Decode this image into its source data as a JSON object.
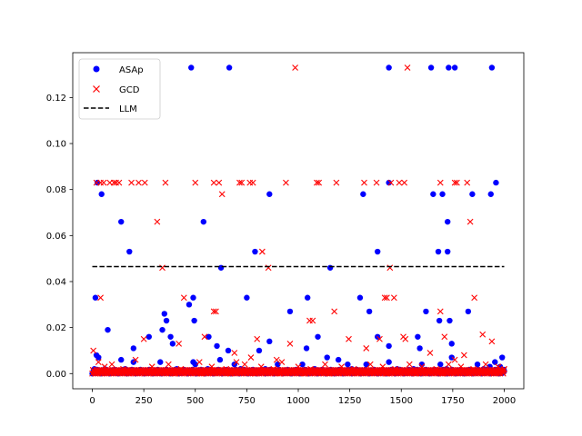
{
  "chart_data": {
    "type": "scatter",
    "title": "",
    "xlabel": "",
    "ylabel": "",
    "xlim": [
      -95,
      2095
    ],
    "ylim": [
      -0.0066,
      0.1395
    ],
    "grid": false,
    "legend": "upper-left",
    "x_ticks": [
      0,
      250,
      500,
      750,
      1000,
      1250,
      1500,
      1750,
      2000
    ],
    "x_tick_labels": [
      "0",
      "250",
      "500",
      "750",
      "1000",
      "1250",
      "1500",
      "1750",
      "2000"
    ],
    "y_ticks": [
      0.0,
      0.02,
      0.04,
      0.06,
      0.08,
      0.1,
      0.12
    ],
    "y_tick_labels": [
      "0.00",
      "0.02",
      "0.04",
      "0.06",
      "0.08",
      "0.10",
      "0.12"
    ],
    "colors": {
      "asap": "#0000ff",
      "gcd": "#ff0000",
      "llm": "#000000"
    },
    "series": [
      {
        "name": "ASAp",
        "marker": "circle",
        "points": [
          [
            480,
            0.133
          ],
          [
            665,
            0.133
          ],
          [
            1440,
            0.133
          ],
          [
            1645,
            0.133
          ],
          [
            1730,
            0.133
          ],
          [
            1760,
            0.133
          ],
          [
            1940,
            0.133
          ],
          [
            25,
            0.083
          ],
          [
            1440,
            0.083
          ],
          [
            1960,
            0.083
          ],
          [
            45,
            0.078
          ],
          [
            860,
            0.078
          ],
          [
            1315,
            0.078
          ],
          [
            1655,
            0.078
          ],
          [
            1700,
            0.078
          ],
          [
            1845,
            0.078
          ],
          [
            1935,
            0.078
          ],
          [
            140,
            0.066
          ],
          [
            540,
            0.066
          ],
          [
            1725,
            0.066
          ],
          [
            180,
            0.053
          ],
          [
            790,
            0.053
          ],
          [
            1385,
            0.053
          ],
          [
            1680,
            0.053
          ],
          [
            1725,
            0.053
          ],
          [
            1155,
            0.046
          ],
          [
            625,
            0.046
          ],
          [
            15,
            0.033
          ],
          [
            490,
            0.033
          ],
          [
            750,
            0.033
          ],
          [
            1045,
            0.033
          ],
          [
            1300,
            0.033
          ],
          [
            470,
            0.03
          ],
          [
            350,
            0.026
          ],
          [
            960,
            0.027
          ],
          [
            1345,
            0.027
          ],
          [
            1620,
            0.027
          ],
          [
            1825,
            0.027
          ],
          [
            75,
            0.019
          ],
          [
            340,
            0.019
          ],
          [
            360,
            0.023
          ],
          [
            495,
            0.023
          ],
          [
            1685,
            0.023
          ],
          [
            1735,
            0.023
          ],
          [
            275,
            0.016
          ],
          [
            380,
            0.016
          ],
          [
            565,
            0.016
          ],
          [
            1095,
            0.016
          ],
          [
            1385,
            0.016
          ],
          [
            1580,
            0.016
          ],
          [
            390,
            0.013
          ],
          [
            605,
            0.012
          ],
          [
            860,
            0.014
          ],
          [
            1440,
            0.012
          ],
          [
            1590,
            0.011
          ],
          [
            1745,
            0.013
          ],
          [
            200,
            0.011
          ],
          [
            810,
            0.01
          ],
          [
            660,
            0.01
          ],
          [
            1040,
            0.011
          ],
          [
            1745,
            0.007
          ],
          [
            20,
            0.008
          ],
          [
            30,
            0.007
          ],
          [
            140,
            0.006
          ],
          [
            1140,
            0.007
          ],
          [
            1195,
            0.006
          ],
          [
            1240,
            0.004
          ],
          [
            200,
            0.005
          ],
          [
            330,
            0.005
          ],
          [
            490,
            0.005
          ],
          [
            500,
            0.004
          ],
          [
            620,
            0.006
          ],
          [
            690,
            0.004
          ],
          [
            900,
            0.004
          ],
          [
            1020,
            0.004
          ],
          [
            1330,
            0.004
          ],
          [
            1440,
            0.005
          ],
          [
            1600,
            0.004
          ],
          [
            1690,
            0.004
          ],
          [
            1870,
            0.004
          ],
          [
            1990,
            0.007
          ],
          [
            1955,
            0.005
          ],
          [
            1930,
            0.003
          ],
          [
            10,
            0.002
          ],
          [
            60,
            0.002
          ],
          [
            100,
            0.001
          ],
          [
            160,
            0.002
          ],
          [
            220,
            0.001
          ],
          [
            280,
            0.001
          ],
          [
            410,
            0.002
          ],
          [
            460,
            0.001
          ],
          [
            560,
            0.002
          ],
          [
            600,
            0.001
          ],
          [
            720,
            0.002
          ],
          [
            780,
            0.001
          ],
          [
            840,
            0.002
          ],
          [
            960,
            0.001
          ],
          [
            1080,
            0.002
          ],
          [
            1120,
            0.001
          ],
          [
            1260,
            0.002
          ],
          [
            1300,
            0.001
          ],
          [
            1400,
            0.001
          ],
          [
            1480,
            0.002
          ],
          [
            1520,
            0.001
          ],
          [
            1560,
            0.002
          ],
          [
            1660,
            0.001
          ],
          [
            1720,
            0.002
          ],
          [
            1800,
            0.001
          ],
          [
            1900,
            0.002
          ],
          [
            2000,
            0.001
          ],
          [
            1980,
            0.003
          ]
        ]
      },
      {
        "name": "GCD",
        "marker": "x",
        "points": [
          [
            985,
            0.133
          ],
          [
            1530,
            0.133
          ],
          [
            20,
            0.083
          ],
          [
            40,
            0.083
          ],
          [
            55,
            0.083
          ],
          [
            85,
            0.083
          ],
          [
            105,
            0.083
          ],
          [
            115,
            0.083
          ],
          [
            130,
            0.083
          ],
          [
            190,
            0.083
          ],
          [
            225,
            0.083
          ],
          [
            255,
            0.083
          ],
          [
            355,
            0.083
          ],
          [
            500,
            0.083
          ],
          [
            590,
            0.083
          ],
          [
            615,
            0.083
          ],
          [
            715,
            0.083
          ],
          [
            725,
            0.083
          ],
          [
            765,
            0.083
          ],
          [
            780,
            0.083
          ],
          [
            940,
            0.083
          ],
          [
            1090,
            0.083
          ],
          [
            1100,
            0.083
          ],
          [
            1185,
            0.083
          ],
          [
            1320,
            0.083
          ],
          [
            1380,
            0.083
          ],
          [
            1450,
            0.083
          ],
          [
            1490,
            0.083
          ],
          [
            1515,
            0.083
          ],
          [
            1690,
            0.083
          ],
          [
            1760,
            0.083
          ],
          [
            1770,
            0.083
          ],
          [
            1820,
            0.083
          ],
          [
            630,
            0.078
          ],
          [
            315,
            0.066
          ],
          [
            1835,
            0.066
          ],
          [
            825,
            0.053
          ],
          [
            340,
            0.046
          ],
          [
            855,
            0.046
          ],
          [
            1445,
            0.046
          ],
          [
            40,
            0.033
          ],
          [
            445,
            0.033
          ],
          [
            1420,
            0.033
          ],
          [
            1430,
            0.033
          ],
          [
            1465,
            0.033
          ],
          [
            1855,
            0.033
          ],
          [
            590,
            0.027
          ],
          [
            600,
            0.027
          ],
          [
            1175,
            0.027
          ],
          [
            1690,
            0.027
          ],
          [
            1055,
            0.023
          ],
          [
            1070,
            0.023
          ],
          [
            1510,
            0.016
          ],
          [
            1520,
            0.015
          ],
          [
            1710,
            0.016
          ],
          [
            250,
            0.015
          ],
          [
            420,
            0.013
          ],
          [
            545,
            0.016
          ],
          [
            1245,
            0.015
          ],
          [
            1395,
            0.015
          ],
          [
            1895,
            0.017
          ],
          [
            770,
            0.007
          ],
          [
            800,
            0.015
          ],
          [
            1940,
            0.014
          ],
          [
            960,
            0.013
          ],
          [
            895,
            0.006
          ],
          [
            690,
            0.009
          ],
          [
            1330,
            0.011
          ],
          [
            700,
            0.005
          ],
          [
            1805,
            0.008
          ],
          [
            1640,
            0.009
          ],
          [
            1760,
            0.006
          ],
          [
            5,
            0.01
          ],
          [
            30,
            0.005
          ],
          [
            60,
            0.003
          ],
          [
            95,
            0.004
          ],
          [
            150,
            0.002
          ],
          [
            210,
            0.006
          ],
          [
            290,
            0.003
          ],
          [
            370,
            0.004
          ],
          [
            430,
            0.002
          ],
          [
            520,
            0.005
          ],
          [
            580,
            0.003
          ],
          [
            650,
            0.002
          ],
          [
            740,
            0.004
          ],
          [
            820,
            0.003
          ],
          [
            880,
            0.002
          ],
          [
            920,
            0.005
          ],
          [
            1000,
            0.003
          ],
          [
            1060,
            0.002
          ],
          [
            1130,
            0.004
          ],
          [
            1210,
            0.003
          ],
          [
            1270,
            0.002
          ],
          [
            1350,
            0.004
          ],
          [
            1410,
            0.003
          ],
          [
            1470,
            0.002
          ],
          [
            1540,
            0.004
          ],
          [
            1600,
            0.003
          ],
          [
            1670,
            0.002
          ],
          [
            1730,
            0.004
          ],
          [
            1790,
            0.003
          ],
          [
            1850,
            0.002
          ],
          [
            1910,
            0.004
          ],
          [
            1970,
            0.003
          ],
          [
            2000,
            0.002
          ],
          [
            15,
            0.0
          ],
          [
            45,
            0.0
          ],
          [
            120,
            0.001
          ],
          [
            180,
            0.0
          ],
          [
            240,
            0.001
          ],
          [
            300,
            0.0
          ],
          [
            360,
            0.001
          ],
          [
            400,
            0.0
          ],
          [
            470,
            0.001
          ],
          [
            530,
            0.0
          ],
          [
            610,
            0.001
          ],
          [
            670,
            0.0
          ],
          [
            730,
            0.001
          ],
          [
            790,
            0.0
          ],
          [
            850,
            0.001
          ],
          [
            910,
            0.0
          ],
          [
            970,
            0.001
          ],
          [
            1030,
            0.0
          ],
          [
            1090,
            0.001
          ],
          [
            1150,
            0.0
          ],
          [
            1230,
            0.001
          ],
          [
            1290,
            0.0
          ],
          [
            1370,
            0.001
          ],
          [
            1430,
            0.0
          ],
          [
            1490,
            0.001
          ],
          [
            1570,
            0.0
          ],
          [
            1630,
            0.001
          ],
          [
            1700,
            0.0
          ],
          [
            1770,
            0.001
          ],
          [
            1830,
            0.0
          ],
          [
            1890,
            0.001
          ],
          [
            1950,
            0.0
          ],
          [
            1995,
            0.001
          ]
        ]
      }
    ],
    "baseline_series": {
      "name": "LLM",
      "style": "dashed",
      "y": 0.0465,
      "x_range": [
        0,
        2000
      ]
    },
    "dense_band": {
      "x_range": [
        0,
        2000
      ],
      "y_range": [
        0.0,
        0.002
      ],
      "description_free": true
    }
  },
  "legend": {
    "items": [
      {
        "label": "ASAp",
        "marker": "circle",
        "color": "#0000ff"
      },
      {
        "label": "GCD",
        "marker": "x",
        "color": "#ff0000"
      },
      {
        "label": "LLM",
        "marker": "dashed-line",
        "color": "#000000"
      }
    ]
  }
}
